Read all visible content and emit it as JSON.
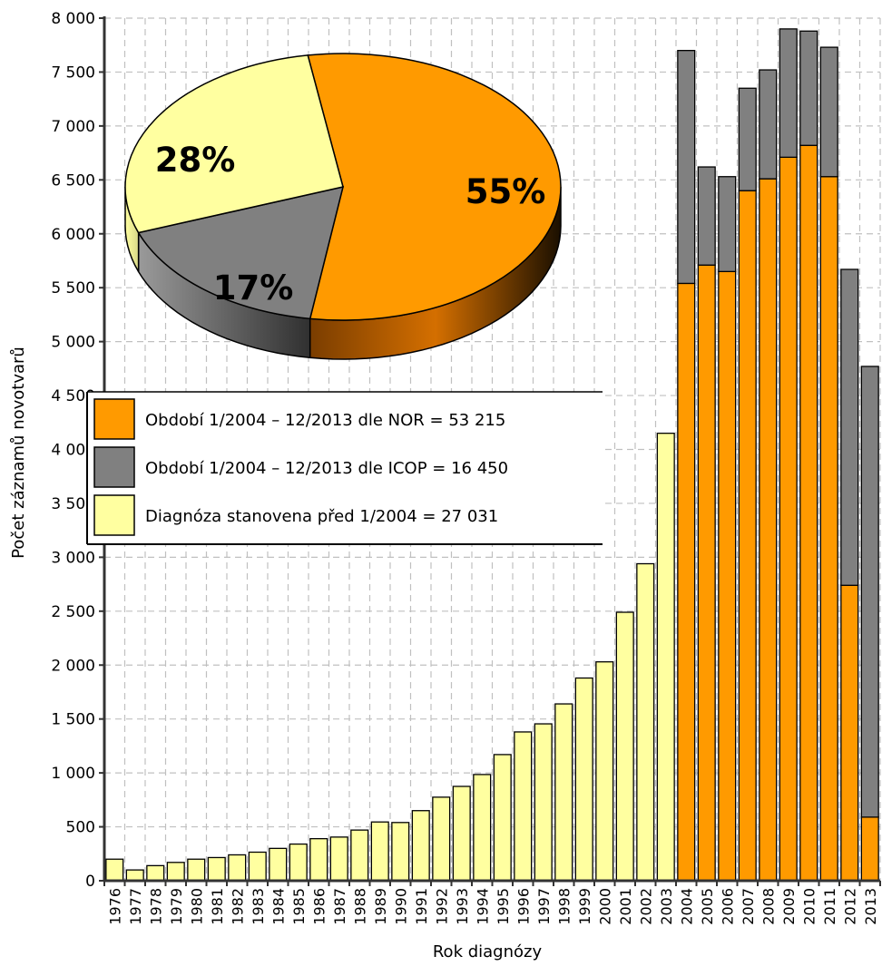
{
  "chart_data": [
    {
      "type": "bar",
      "stacked": true,
      "xlabel": "Rok diagnózy",
      "ylabel": "Počet záznamů novotvarů",
      "ylim": [
        0,
        8000
      ],
      "yticks": [
        "0",
        "500",
        "1 000",
        "1 500",
        "2 000",
        "2 500",
        "3 000",
        "3 500",
        "4 000",
        "4 500",
        "5 000",
        "5 500",
        "6 000",
        "6 500",
        "7 000",
        "7 500",
        "8 000"
      ],
      "ytick_values": [
        0,
        500,
        1000,
        1500,
        2000,
        2500,
        3000,
        3500,
        4000,
        4500,
        5000,
        5500,
        6000,
        6500,
        7000,
        7500,
        8000
      ],
      "grid": true,
      "categories": [
        "1976",
        "1977",
        "1978",
        "1979",
        "1980",
        "1981",
        "1982",
        "1983",
        "1984",
        "1985",
        "1986",
        "1987",
        "1988",
        "1989",
        "1990",
        "1991",
        "1992",
        "1993",
        "1994",
        "1995",
        "1996",
        "1997",
        "1998",
        "1999",
        "2000",
        "2001",
        "2002",
        "2003",
        "2004",
        "2005",
        "2006",
        "2007",
        "2008",
        "2009",
        "2010",
        "2011",
        "2012",
        "2013"
      ],
      "series": [
        {
          "name": "Diagnóza stanovena před 1/2004 = 27 031",
          "color": "#ffffa0",
          "values": [
            200,
            100,
            140,
            170,
            200,
            215,
            240,
            265,
            300,
            340,
            390,
            405,
            470,
            545,
            540,
            650,
            775,
            875,
            985,
            1170,
            1380,
            1455,
            1640,
            1880,
            2030,
            2490,
            2940,
            4150,
            0,
            0,
            0,
            0,
            0,
            0,
            0,
            0,
            0,
            0
          ]
        },
        {
          "name": "Období 1/2004 – 12/2013 dle NOR = 53 215",
          "color": "#ff9a00",
          "values": [
            0,
            0,
            0,
            0,
            0,
            0,
            0,
            0,
            0,
            0,
            0,
            0,
            0,
            0,
            0,
            0,
            0,
            0,
            0,
            0,
            0,
            0,
            0,
            0,
            0,
            0,
            0,
            0,
            5540,
            5710,
            5650,
            6400,
            6510,
            6710,
            6820,
            6530,
            2740,
            590
          ]
        },
        {
          "name": "Období 1/2004 – 12/2013 dle ICOP = 16 450",
          "color": "#808080",
          "values": [
            0,
            0,
            0,
            0,
            0,
            0,
            0,
            0,
            0,
            0,
            0,
            0,
            0,
            0,
            0,
            0,
            0,
            0,
            0,
            0,
            0,
            0,
            0,
            0,
            0,
            0,
            0,
            0,
            2160,
            910,
            880,
            950,
            1010,
            1190,
            1060,
            1200,
            2930,
            4180
          ]
        }
      ],
      "legend": [
        {
          "label": "Období 1/2004 – 12/2013 dle NOR = 53 215",
          "color": "#ff9a00"
        },
        {
          "label": "Období 1/2004 – 12/2013 dle ICOP = 16 450",
          "color": "#808080"
        },
        {
          "label": "Diagnóza stanovena před 1/2004 = 27 031",
          "color": "#ffffa0"
        }
      ],
      "legend_position": "middle-left"
    },
    {
      "type": "pie",
      "three_d": true,
      "position": "top-left",
      "slices": [
        {
          "label": "55%",
          "value": 55,
          "color": "#ff9a00"
        },
        {
          "label": "17%",
          "value": 17,
          "color": "#808080"
        },
        {
          "label": "28%",
          "value": 28,
          "color": "#ffffa0"
        }
      ]
    }
  ]
}
